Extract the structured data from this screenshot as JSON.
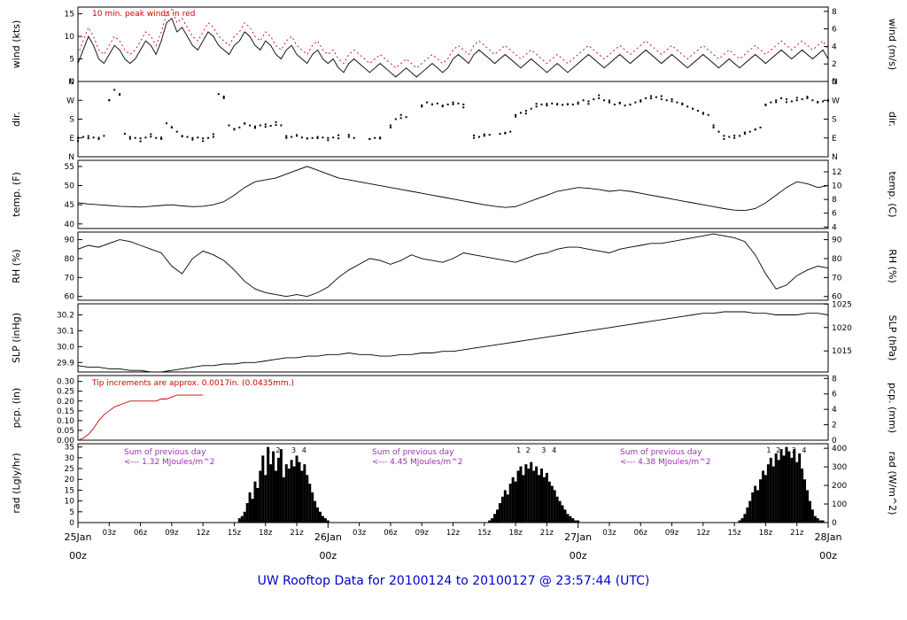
{
  "title": "UW Rooftop Data for 20100124  to  20100127 @ 23:57:44  (UTC)",
  "colors": {
    "red": "#cc0000",
    "purple": "#9933aa",
    "blue": "#0000cc",
    "black": "#000000"
  },
  "annotations": {
    "wind_note": "10 min. peak winds in red",
    "pcp_note": "Tip increments are approx. 0.0017in. (0.0435mm.)",
    "rad_notes": [
      {
        "line1": "Sum of previous day",
        "line2": "<--- 1.32 MJoules/m^2"
      },
      {
        "line1": "Sum of previous day",
        "line2": "<--- 4.45 MJoules/m^2"
      },
      {
        "line1": "Sum of previous day",
        "line2": "<--- 4.38 MJoules/m^2"
      }
    ]
  },
  "chart_data": {
    "type": "line",
    "description": "Seven stacked meteorological time-series panels, x axis = hours 0-72 from 25Jan 00z to 28Jan 00z UTC",
    "x": {
      "lim": [
        0,
        72
      ],
      "minor_ticks": [
        {
          "t": 3,
          "label": "03z"
        },
        {
          "t": 6,
          "label": "06z"
        },
        {
          "t": 9,
          "label": "09z"
        },
        {
          "t": 12,
          "label": "12z"
        },
        {
          "t": 15,
          "label": "15z"
        },
        {
          "t": 18,
          "label": "18z"
        },
        {
          "t": 21,
          "label": "21z"
        },
        {
          "t": 27,
          "label": "03z"
        },
        {
          "t": 30,
          "label": "06z"
        },
        {
          "t": 33,
          "label": "09z"
        },
        {
          "t": 36,
          "label": "12z"
        },
        {
          "t": 39,
          "label": "15z"
        },
        {
          "t": 42,
          "label": "18z"
        },
        {
          "t": 45,
          "label": "21z"
        },
        {
          "t": 51,
          "label": "03z"
        },
        {
          "t": 54,
          "label": "06z"
        },
        {
          "t": 57,
          "label": "09z"
        },
        {
          "t": 60,
          "label": "12z"
        },
        {
          "t": 63,
          "label": "15z"
        },
        {
          "t": 66,
          "label": "18z"
        },
        {
          "t": 69,
          "label": "21z"
        }
      ],
      "day_ticks": [
        {
          "t": 0,
          "date": "25Jan",
          "hour": "00z"
        },
        {
          "t": 24,
          "date": "26Jan",
          "hour": "00z"
        },
        {
          "t": 48,
          "date": "27Jan",
          "hour": "00z"
        },
        {
          "t": 72,
          "date": "28Jan",
          "hour": "00z"
        }
      ]
    },
    "panels": [
      {
        "id": "wind",
        "label_left": "wind (kts)",
        "label_right": "wind (m/s)",
        "ylim": [
          0,
          16.5
        ],
        "ylim_right": [
          0,
          8.49
        ],
        "ticks_left": {
          "values": [
            0,
            5,
            10,
            15
          ],
          "labels": [
            "0",
            "5",
            "10",
            "15"
          ]
        },
        "ticks_right": {
          "values": [
            0,
            2,
            4,
            6,
            8
          ],
          "labels": [
            "0",
            "2",
            "4",
            "6",
            "8"
          ]
        },
        "avg_kts": [
          4,
          7,
          10,
          8,
          5,
          4,
          6,
          8,
          7,
          5,
          4,
          5,
          7,
          9,
          8,
          6,
          9,
          13,
          14,
          11,
          12,
          10,
          8,
          7,
          9,
          11,
          10,
          8,
          7,
          6,
          8,
          9,
          11,
          10,
          8,
          7,
          9,
          8,
          6,
          5,
          7,
          8,
          6,
          5,
          4,
          6,
          7,
          5,
          4,
          5,
          3,
          2,
          4,
          5,
          4,
          3,
          2,
          3,
          4,
          3,
          2,
          1,
          2,
          3,
          2,
          1,
          2,
          3,
          4,
          3,
          2,
          3,
          5,
          6,
          5,
          4,
          6,
          7,
          6,
          5,
          4,
          5,
          6,
          5,
          4,
          3,
          4,
          5,
          4,
          3,
          2,
          3,
          4,
          3,
          2,
          3,
          4,
          5,
          6,
          5,
          4,
          3,
          4,
          5,
          6,
          5,
          4,
          5,
          6,
          7,
          6,
          5,
          4,
          5,
          6,
          5,
          4,
          3,
          4,
          5,
          6,
          5,
          4,
          3,
          4,
          5,
          4,
          3,
          4,
          5,
          6,
          5,
          4,
          5,
          6,
          7,
          6,
          5,
          6,
          7,
          6,
          5,
          6,
          7,
          5
        ],
        "peak_offset_kts": 2
      },
      {
        "id": "dir",
        "label_left": "dir.",
        "label_right": "dir.",
        "ylim": [
          0,
          360
        ],
        "ylim_right": [
          0,
          360
        ],
        "ticks_left": {
          "values": [
            0,
            90,
            180,
            270,
            360
          ],
          "labels": [
            "N",
            "E",
            "S",
            "W",
            "N"
          ]
        },
        "ticks_right": {
          "values": [
            0,
            90,
            180,
            270,
            360
          ],
          "labels": [
            "N",
            "E",
            "S",
            "W",
            "N"
          ]
        },
        "deg": [
          90,
          95,
          88,
          92,
          85,
          100,
          270,
          320,
          300,
          110,
          95,
          90,
          88,
          92,
          96,
          90,
          85,
          160,
          140,
          120,
          100,
          95,
          90,
          92,
          88,
          90,
          95,
          300,
          280,
          150,
          130,
          140,
          160,
          150,
          145,
          150,
          155,
          148,
          152,
          150,
          90,
          95,
          100,
          92,
          88,
          90,
          95,
          92,
          90,
          92,
          88,
          null,
          95,
          90,
          null,
          null,
          85,
          90,
          92,
          null,
          150,
          180,
          200,
          190,
          null,
          null,
          240,
          260,
          250,
          255,
          245,
          250,
          260,
          255,
          250,
          null,
          90,
          95,
          100,
          105,
          null,
          110,
          115,
          120,
          200,
          210,
          220,
          230,
          240,
          250,
          245,
          255,
          250,
          248,
          252,
          250,
          260,
          270,
          265,
          275,
          280,
          270,
          260,
          250,
          255,
          245,
          250,
          260,
          270,
          280,
          290,
          285,
          275,
          270,
          265,
          260,
          250,
          240,
          230,
          220,
          210,
          200,
          150,
          120,
          100,
          95,
          90,
          100,
          110,
          120,
          130,
          140,
          250,
          260,
          270,
          280,
          275,
          265,
          270,
          275,
          280,
          270,
          260,
          265,
          270
        ]
      },
      {
        "id": "temp",
        "label_left": "temp. (F)",
        "label_right": "temp. (C)",
        "ylim": [
          38.8,
          56.6
        ],
        "ylim_right": [
          3.78,
          13.67
        ],
        "ticks_left": {
          "values": [
            40,
            45,
            50,
            55
          ],
          "labels": [
            "40",
            "45",
            "50",
            "55"
          ]
        },
        "ticks_right": {
          "values": [
            4,
            6,
            8,
            10,
            12
          ],
          "labels": [
            "4",
            "6",
            "8",
            "10",
            "12"
          ]
        },
        "values": [
          45.5,
          45.2,
          45.0,
          44.8,
          44.6,
          44.5,
          44.4,
          44.6,
          44.8,
          45.0,
          44.7,
          44.5,
          44.6,
          45.0,
          45.8,
          47.5,
          49.5,
          51.0,
          51.5,
          52.0,
          53.0,
          54.0,
          55.0,
          54.0,
          53.0,
          52.0,
          51.5,
          51.0,
          50.5,
          50.0,
          49.5,
          49.0,
          48.5,
          48.0,
          47.5,
          47.0,
          46.5,
          46.0,
          45.5,
          45.0,
          44.6,
          44.3,
          44.5,
          45.5,
          46.5,
          47.5,
          48.5,
          49.0,
          49.5,
          49.3,
          49.0,
          48.5,
          48.8,
          48.5,
          48.0,
          47.5,
          47.0,
          46.5,
          46.0,
          45.5,
          45.0,
          44.5,
          44.0,
          43.6,
          43.5,
          44.0,
          45.5,
          47.5,
          49.5,
          51.0,
          50.5,
          49.5,
          50.0
        ]
      },
      {
        "id": "rh",
        "label_left": "RH (%)",
        "label_right": "RH (%)",
        "ylim": [
          58,
          94
        ],
        "ylim_right": [
          58,
          94
        ],
        "ticks_left": {
          "values": [
            60,
            70,
            80,
            90
          ],
          "labels": [
            "60",
            "70",
            "80",
            "90"
          ]
        },
        "ticks_right": {
          "values": [
            60,
            70,
            80,
            90
          ],
          "labels": [
            "60",
            "70",
            "80",
            "90"
          ]
        },
        "values": [
          85,
          87,
          86,
          88,
          90,
          89,
          87,
          85,
          83,
          76,
          72,
          80,
          84,
          82,
          79,
          74,
          68,
          64,
          62,
          61,
          60,
          61,
          60,
          62,
          65,
          70,
          74,
          77,
          80,
          79,
          77,
          79,
          82,
          80,
          79,
          78,
          80,
          83,
          82,
          81,
          80,
          79,
          78,
          80,
          82,
          83,
          85,
          86,
          86,
          85,
          84,
          83,
          85,
          86,
          87,
          88,
          88,
          89,
          90,
          91,
          92,
          93,
          92,
          91,
          89,
          82,
          72,
          64,
          66,
          71,
          74,
          76,
          75
        ]
      },
      {
        "id": "slp",
        "label_left": "SLP (inHg)",
        "label_right": "SLP (hPa)",
        "ylim": [
          29.84,
          30.27
        ],
        "ylim_right": [
          1010.5,
          1025.06
        ],
        "ticks_left": {
          "values": [
            29.9,
            30.0,
            30.1,
            30.2
          ],
          "labels": [
            "29.9",
            "30.0",
            "30.1",
            "30.2"
          ]
        },
        "ticks_right": {
          "values": [
            1015,
            1020,
            1025
          ],
          "labels": [
            "1015",
            "1020",
            "1025"
          ]
        },
        "values": [
          29.88,
          29.87,
          29.87,
          29.86,
          29.86,
          29.85,
          29.85,
          29.84,
          29.84,
          29.85,
          29.86,
          29.87,
          29.88,
          29.88,
          29.89,
          29.89,
          29.9,
          29.9,
          29.91,
          29.92,
          29.93,
          29.93,
          29.94,
          29.94,
          29.95,
          29.95,
          29.96,
          29.95,
          29.95,
          29.94,
          29.94,
          29.95,
          29.95,
          29.96,
          29.96,
          29.97,
          29.97,
          29.98,
          29.99,
          30.0,
          30.01,
          30.02,
          30.03,
          30.04,
          30.05,
          30.06,
          30.07,
          30.08,
          30.09,
          30.1,
          30.11,
          30.12,
          30.13,
          30.14,
          30.15,
          30.16,
          30.17,
          30.18,
          30.19,
          30.2,
          30.21,
          30.21,
          30.22,
          30.22,
          30.22,
          30.21,
          30.21,
          30.2,
          30.2,
          30.2,
          30.21,
          30.21,
          30.2
        ]
      },
      {
        "id": "pcp",
        "label_left": "pcp. (in)",
        "label_right": "pcp. (mm)",
        "ylim": [
          0,
          0.33
        ],
        "ylim_right": [
          0,
          8.38
        ],
        "ticks_left": {
          "values": [
            0.0,
            0.05,
            0.1,
            0.15,
            0.2,
            0.25,
            0.3
          ],
          "labels": [
            "0.00",
            "0.05",
            "0.10",
            "0.15",
            "0.20",
            "0.25",
            "0.30"
          ]
        },
        "ticks_right": {
          "values": [
            0,
            2,
            4,
            6,
            8
          ],
          "labels": [
            "0",
            "2",
            "4",
            "6",
            "8"
          ]
        },
        "tmax": 12,
        "values": [
          0.0,
          0.01,
          0.03,
          0.06,
          0.1,
          0.13,
          0.15,
          0.17,
          0.18,
          0.19,
          0.2,
          0.2,
          0.2,
          0.2,
          0.2,
          0.2,
          0.21,
          0.21,
          0.22,
          0.23,
          0.23,
          0.23,
          0.23,
          0.23,
          0.23
        ]
      },
      {
        "id": "rad",
        "label_left": "rad (Lgly/hr)",
        "label_right": "rad (W/m^2)",
        "ylim": [
          0,
          36.5
        ],
        "ylim_right": [
          0,
          424.5
        ],
        "ticks_left": {
          "values": [
            0,
            5,
            10,
            15,
            20,
            25,
            30,
            35
          ],
          "labels": [
            "0",
            "5",
            "10",
            "15",
            "20",
            "25",
            "30",
            "35"
          ]
        },
        "ticks_right": {
          "values": [
            0,
            100,
            200,
            300,
            400
          ],
          "labels": [
            "0",
            "100",
            "200",
            "300",
            "400"
          ]
        },
        "segments": [
          {
            "t0": 15.5,
            "dt": 0.25,
            "values": [
              2,
              3,
              5,
              9,
              14,
              11,
              19,
              16,
              24,
              31,
              22,
              35,
              27,
              33,
              24,
              30,
              34,
              21,
              27,
              25,
              29,
              26,
              31,
              28,
              24,
              27,
              22,
              18,
              14,
              10,
              7,
              5,
              3,
              2,
              1
            ]
          },
          {
            "t0": 39.5,
            "dt": 0.25,
            "values": [
              1,
              2,
              4,
              6,
              9,
              12,
              15,
              13,
              18,
              21,
              19,
              24,
              26,
              22,
              27,
              25,
              28,
              24,
              26,
              22,
              25,
              21,
              23,
              19,
              17,
              15,
              12,
              10,
              8,
              6,
              4,
              3,
              2,
              1,
              1
            ]
          },
          {
            "t0": 63.5,
            "dt": 0.25,
            "values": [
              1,
              2,
              4,
              7,
              10,
              14,
              17,
              15,
              20,
              24,
              22,
              27,
              30,
              26,
              32,
              29,
              34,
              31,
              35,
              33,
              30,
              34,
              28,
              32,
              25,
              20,
              15,
              10,
              6,
              3,
              2,
              1,
              1,
              0,
              0
            ]
          }
        ],
        "peak_labels": [
          {
            "t": 18.3,
            "label": "1"
          },
          {
            "t": 19.2,
            "label": "2"
          },
          {
            "t": 20.7,
            "label": "3"
          },
          {
            "t": 21.7,
            "label": "4"
          },
          {
            "t": 42.3,
            "label": "1"
          },
          {
            "t": 43.2,
            "label": "2"
          },
          {
            "t": 44.7,
            "label": "3"
          },
          {
            "t": 45.7,
            "label": "4"
          },
          {
            "t": 66.3,
            "label": "1"
          },
          {
            "t": 67.2,
            "label": "2"
          },
          {
            "t": 68.7,
            "label": "3"
          },
          {
            "t": 69.7,
            "label": "4"
          }
        ]
      }
    ]
  }
}
